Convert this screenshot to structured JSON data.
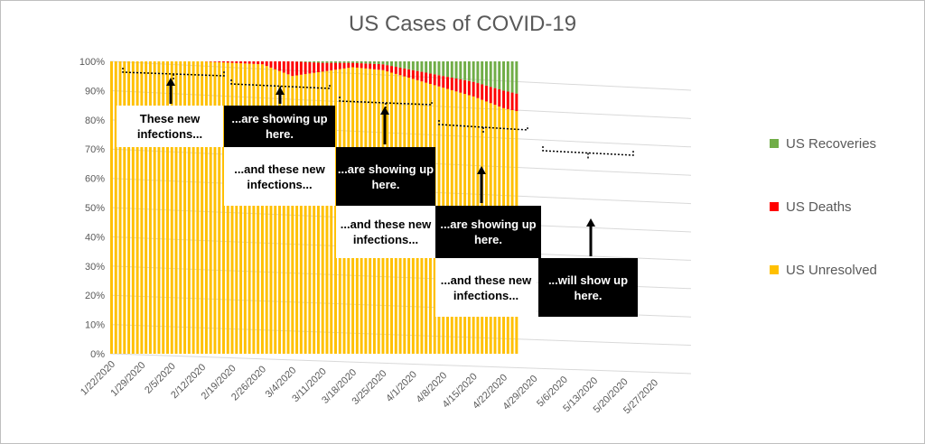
{
  "chart_data": {
    "type": "bar",
    "stacked": true,
    "percent_stacked": true,
    "title": "US Cases of COVID-19",
    "y_ticks": [
      "0%",
      "10%",
      "20%",
      "30%",
      "40%",
      "50%",
      "60%",
      "70%",
      "80%",
      "90%",
      "100%"
    ],
    "ylim": [
      0,
      100
    ],
    "x_ticks": [
      "1/22/2020",
      "1/29/2020",
      "2/5/2020",
      "2/12/2020",
      "2/19/2020",
      "2/26/2020",
      "3/4/2020",
      "3/11/2020",
      "3/18/2020",
      "3/25/2020",
      "4/1/2020",
      "4/8/2020",
      "4/15/2020",
      "4/22/2020",
      "4/29/2020",
      "5/6/2020",
      "5/13/2020",
      "5/20/2020",
      "5/27/2020"
    ],
    "grid": true,
    "legend_position": "right",
    "series": [
      {
        "name": "US Recoveries",
        "color": "#70ad47",
        "points": [
          {
            "x": "1/22/2020",
            "y": 0
          },
          {
            "x": "2/12/2020",
            "y": 0
          },
          {
            "x": "2/26/2020",
            "y": 0
          },
          {
            "x": "3/4/2020",
            "y": 0
          },
          {
            "x": "3/11/2020",
            "y": 0.5
          },
          {
            "x": "3/18/2020",
            "y": 0.5
          },
          {
            "x": "3/25/2020",
            "y": 1
          },
          {
            "x": "4/1/2020",
            "y": 3
          },
          {
            "x": "4/8/2020",
            "y": 5
          },
          {
            "x": "4/15/2020",
            "y": 7
          },
          {
            "x": "4/22/2020",
            "y": 10
          },
          {
            "x": "4/25/2020",
            "y": 11
          }
        ]
      },
      {
        "name": "US Deaths",
        "color": "#ff0000",
        "points": [
          {
            "x": "1/22/2020",
            "y": 0
          },
          {
            "x": "2/12/2020",
            "y": 0
          },
          {
            "x": "2/26/2020",
            "y": 1
          },
          {
            "x": "3/4/2020",
            "y": 5
          },
          {
            "x": "3/11/2020",
            "y": 3
          },
          {
            "x": "3/18/2020",
            "y": 1.5
          },
          {
            "x": "3/25/2020",
            "y": 2
          },
          {
            "x": "4/1/2020",
            "y": 3
          },
          {
            "x": "4/8/2020",
            "y": 4
          },
          {
            "x": "4/15/2020",
            "y": 5
          },
          {
            "x": "4/22/2020",
            "y": 6
          },
          {
            "x": "4/25/2020",
            "y": 6
          }
        ]
      },
      {
        "name": "US Unresolved",
        "color": "#ffc000",
        "points": [
          {
            "x": "1/22/2020",
            "y": 100
          },
          {
            "x": "2/12/2020",
            "y": 100
          },
          {
            "x": "2/26/2020",
            "y": 99
          },
          {
            "x": "3/4/2020",
            "y": 95
          },
          {
            "x": "3/11/2020",
            "y": 96.5
          },
          {
            "x": "3/18/2020",
            "y": 98
          },
          {
            "x": "3/25/2020",
            "y": 97
          },
          {
            "x": "4/1/2020",
            "y": 94
          },
          {
            "x": "4/8/2020",
            "y": 91
          },
          {
            "x": "4/15/2020",
            "y": 88
          },
          {
            "x": "4/22/2020",
            "y": 84
          },
          {
            "x": "4/25/2020",
            "y": 83
          }
        ]
      }
    ],
    "annotations": [
      {
        "text": "These new infections...",
        "style": "white"
      },
      {
        "text": "...are showing up here.",
        "style": "black"
      },
      {
        "text": "...and these new infections...",
        "style": "white"
      },
      {
        "text": "...are showing up here.",
        "style": "black"
      },
      {
        "text": "...and these new infections...",
        "style": "white"
      },
      {
        "text": "...are showing up here.",
        "style": "black"
      },
      {
        "text": "...and these new infections...",
        "style": "white"
      },
      {
        "text": "...will show up here.",
        "style": "black"
      }
    ]
  }
}
